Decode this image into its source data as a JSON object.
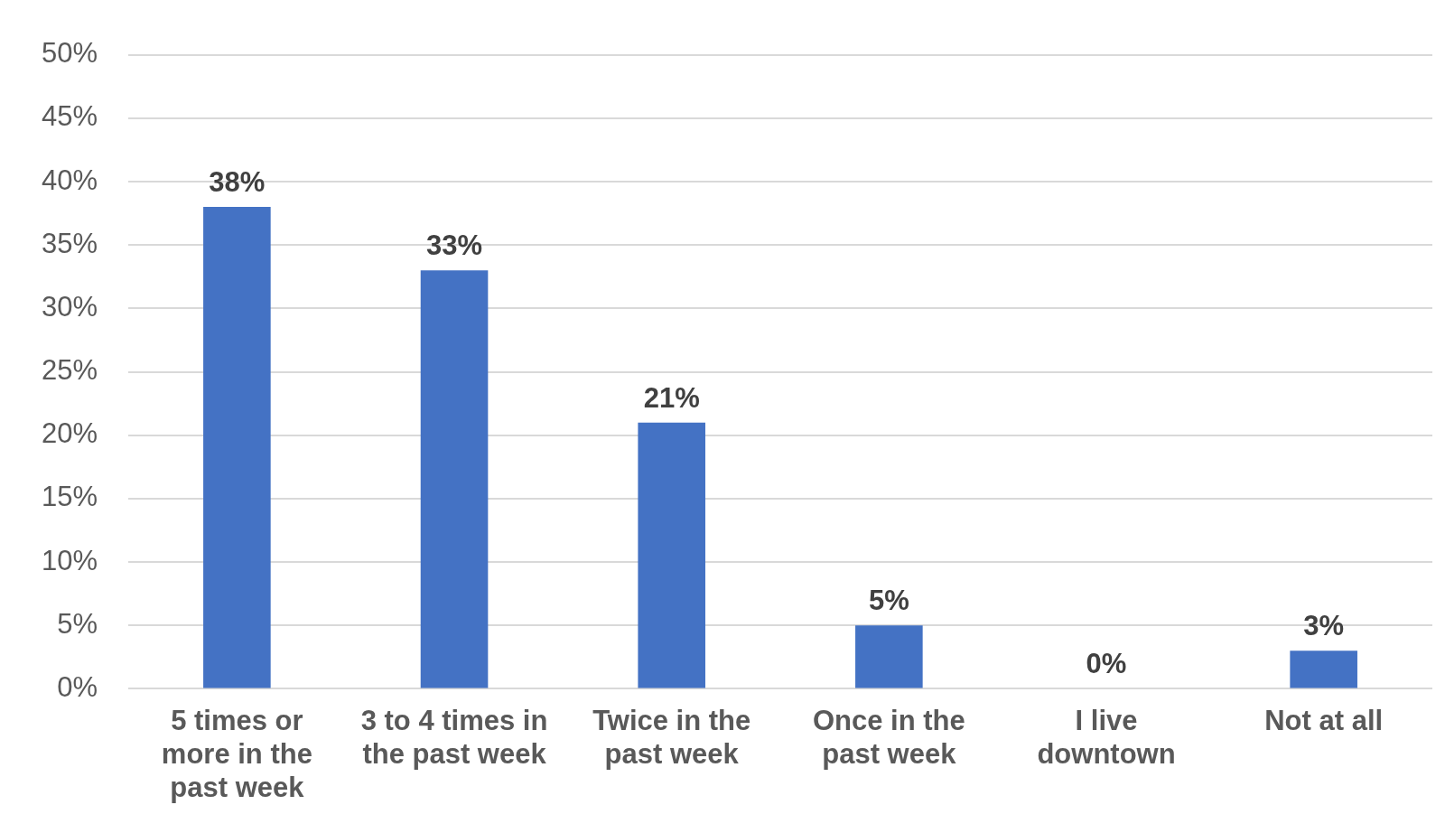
{
  "chart_data": {
    "type": "bar",
    "categories": [
      "5 times or more in the past week",
      "3 to 4 times in the past week",
      "Twice in the past week",
      "Once in the past week",
      "I live downtown",
      "Not at all"
    ],
    "values": [
      38,
      33,
      21,
      5,
      0,
      3
    ],
    "value_labels": [
      "38%",
      "33%",
      "21%",
      "5%",
      "0%",
      "3%"
    ],
    "color": "#4472c4",
    "ylim": [
      0,
      50
    ],
    "yticks": [
      {
        "value": 0,
        "label": "0%"
      },
      {
        "value": 5,
        "label": "5%"
      },
      {
        "value": 10,
        "label": "10%"
      },
      {
        "value": 15,
        "label": "15%"
      },
      {
        "value": 20,
        "label": "20%"
      },
      {
        "value": 25,
        "label": "25%"
      },
      {
        "value": 30,
        "label": "30%"
      },
      {
        "value": 35,
        "label": "35%"
      },
      {
        "value": 40,
        "label": "40%"
      },
      {
        "value": 45,
        "label": "45%"
      },
      {
        "value": 50,
        "label": "50%"
      }
    ],
    "grid": "y",
    "legend": false
  }
}
